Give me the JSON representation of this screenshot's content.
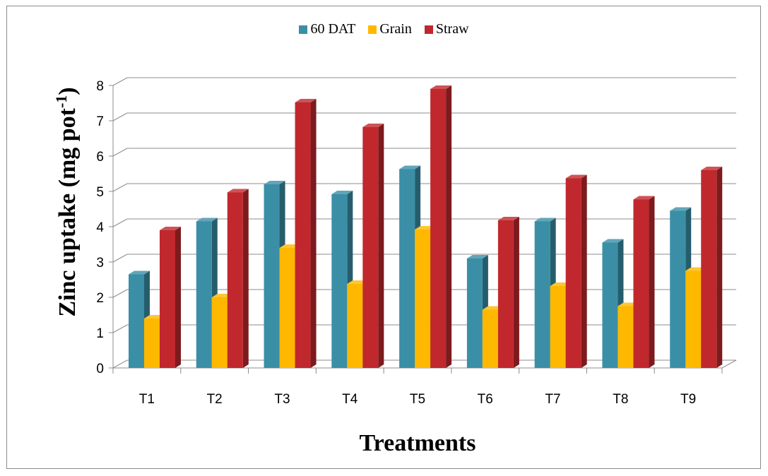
{
  "chart_data": {
    "type": "bar",
    "title": "",
    "xlabel": "Treatments",
    "ylabel": "Zinc uptake (mg pot",
    "ylabel_superscript": "-1",
    "ylabel_suffix": ")",
    "categories": [
      "T1",
      "T2",
      "T3",
      "T4",
      "T5",
      "T6",
      "T7",
      "T8",
      "T9"
    ],
    "ylim": [
      0,
      8
    ],
    "yticks": [
      0,
      1,
      2,
      3,
      4,
      5,
      6,
      7,
      8
    ],
    "grid": true,
    "legend_position": "top",
    "series": [
      {
        "name": "60 DAT",
        "color": "#3a8fa6",
        "values": [
          2.65,
          4.15,
          5.2,
          4.92,
          5.63,
          3.1,
          4.15,
          3.55,
          4.45
        ]
      },
      {
        "name": "Grain",
        "color": "#ffb800",
        "values": [
          1.4,
          2.0,
          3.4,
          2.38,
          3.92,
          1.65,
          2.32,
          1.75,
          2.75
        ]
      },
      {
        "name": "Straw",
        "color": "#c0282d",
        "values": [
          3.9,
          4.97,
          7.52,
          6.82,
          7.9,
          4.18,
          5.37,
          4.77,
          5.6
        ]
      }
    ]
  }
}
